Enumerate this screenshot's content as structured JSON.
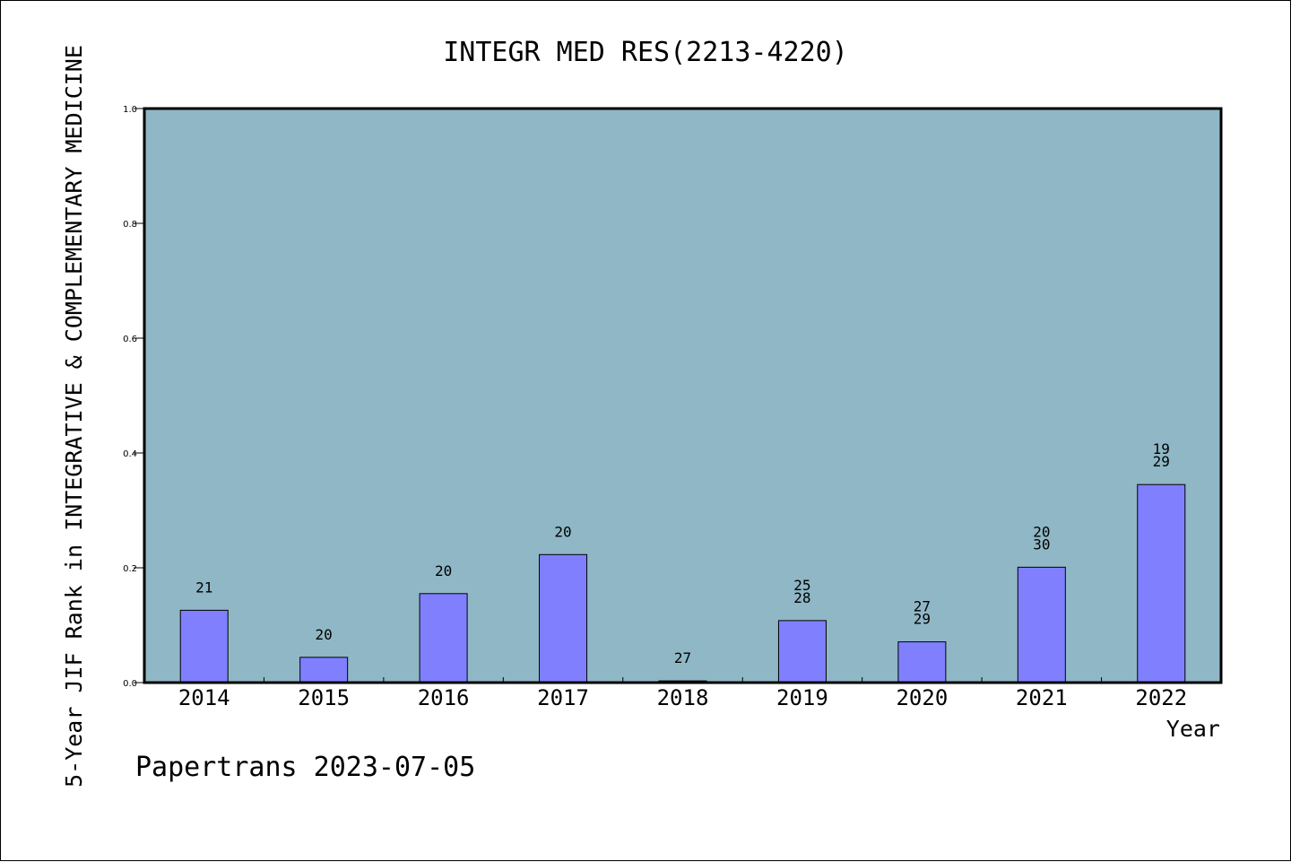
{
  "footer": "Papertrans 2023-07-05",
  "colors": {
    "plot_background": "#8fb7c5",
    "bar_fill": "#8080ff",
    "axis": "#000000"
  },
  "chart_data": {
    "type": "bar",
    "title": "INTEGR MED RES(2213-4220)",
    "xlabel": "Year",
    "ylabel": "5-Year JIF Rank in INTEGRATIVE & COMPLEMENTARY MEDICINE",
    "ylim": [
      0,
      1.0
    ],
    "yticks": [
      "0.0",
      "0.2",
      "0.4",
      "0.6",
      "0.8",
      "1.0"
    ],
    "grid": false,
    "categories": [
      "2014",
      "2015",
      "2016",
      "2017",
      "2018",
      "2019",
      "2020",
      "2021",
      "2022"
    ],
    "values": [
      0.126,
      0.044,
      0.155,
      0.223,
      0.003,
      0.108,
      0.071,
      0.201,
      0.345
    ],
    "annotations": [
      [
        "21"
      ],
      [
        "20"
      ],
      [
        "20"
      ],
      [
        "20"
      ],
      [
        "27"
      ],
      [
        "25",
        "28"
      ],
      [
        "27",
        "29"
      ],
      [
        "20",
        "30"
      ],
      [
        "19",
        "29"
      ]
    ]
  }
}
